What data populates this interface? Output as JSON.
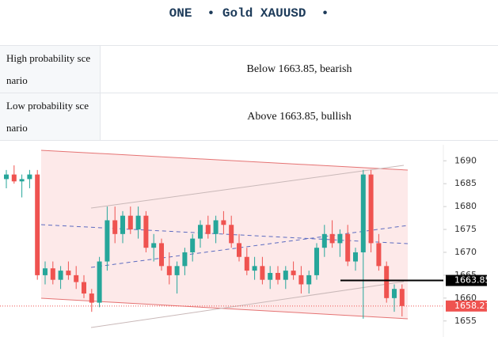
{
  "header": {
    "title": "ONE  • Gold XAUUSD  •"
  },
  "table": {
    "rows": [
      [
        "High probability scenario",
        "Below 1663.85, bearish"
      ],
      [
        "Low probability scenario",
        "Above 1663.85, bullish"
      ]
    ]
  },
  "chart_data": {
    "type": "candlestick",
    "open": [
      1686,
      1687,
      1685.5,
      1686,
      1687,
      1665,
      1666.5,
      1664,
      1666,
      1665,
      1663.5,
      1661,
      1659,
      1668,
      1677,
      1674,
      1678,
      1675,
      1678,
      1671,
      1672,
      1667,
      1665,
      1667,
      1670,
      1673,
      1676,
      1674,
      1677,
      1676,
      1672,
      1669,
      1666,
      1667,
      1664,
      1665.5,
      1664,
      1666,
      1665,
      1663,
      1665,
      1671,
      1674,
      1672,
      1674,
      1668,
      1670,
      1687,
      1672,
      1667,
      1660,
      1662
    ],
    "high": [
      1688,
      1689,
      1687,
      1688,
      1688,
      1668,
      1668,
      1667,
      1668,
      1667,
      1665,
      1662,
      1669,
      1680,
      1680,
      1679,
      1680,
      1680,
      1679,
      1674,
      1673,
      1670,
      1668,
      1671,
      1674,
      1677,
      1678,
      1678,
      1679,
      1678,
      1674,
      1671,
      1669,
      1669,
      1667,
      1667,
      1667,
      1668,
      1667,
      1666,
      1672,
      1676,
      1677,
      1675,
      1676,
      1671,
      1688,
      1688,
      1674,
      1668,
      1663,
      1663
    ],
    "low": [
      1684,
      1685,
      1682,
      1684,
      1664,
      1663,
      1663,
      1662,
      1664,
      1662,
      1660,
      1657,
      1658,
      1666,
      1672,
      1672,
      1674,
      1673,
      1670,
      1668,
      1666,
      1663,
      1661,
      1665,
      1668,
      1671,
      1673,
      1672,
      1674,
      1671,
      1668,
      1665,
      1664,
      1663,
      1662,
      1663,
      1662,
      1664,
      1661,
      1661,
      1664,
      1669,
      1671,
      1669,
      1667,
      1666,
      1655.5,
      1670,
      1666,
      1659,
      1657,
      1656
    ],
    "close": [
      1687,
      1685.5,
      1686,
      1687,
      1665,
      1666.5,
      1664,
      1666,
      1665,
      1663.5,
      1661,
      1659,
      1668,
      1677,
      1674,
      1678,
      1675,
      1678,
      1671,
      1672,
      1667,
      1665,
      1667,
      1670,
      1673,
      1676,
      1674,
      1677,
      1676,
      1672,
      1669,
      1666,
      1667,
      1664,
      1665.5,
      1664,
      1666,
      1665,
      1663,
      1665,
      1671,
      1674,
      1672,
      1674,
      1668,
      1670,
      1687,
      1672,
      1667,
      1660,
      1662,
      1658.27
    ],
    "up_color": "#26a69a",
    "down_color": "#ef5350",
    "ylim": [
      1651.5,
      1693.5
    ],
    "yticks": [
      1655,
      1660,
      1665,
      1670,
      1675,
      1680,
      1685,
      1690
    ],
    "levels": [
      {
        "value": 1663.85,
        "color": "#000000"
      },
      {
        "value": 1658.27,
        "color": "#ef5350"
      }
    ]
  }
}
